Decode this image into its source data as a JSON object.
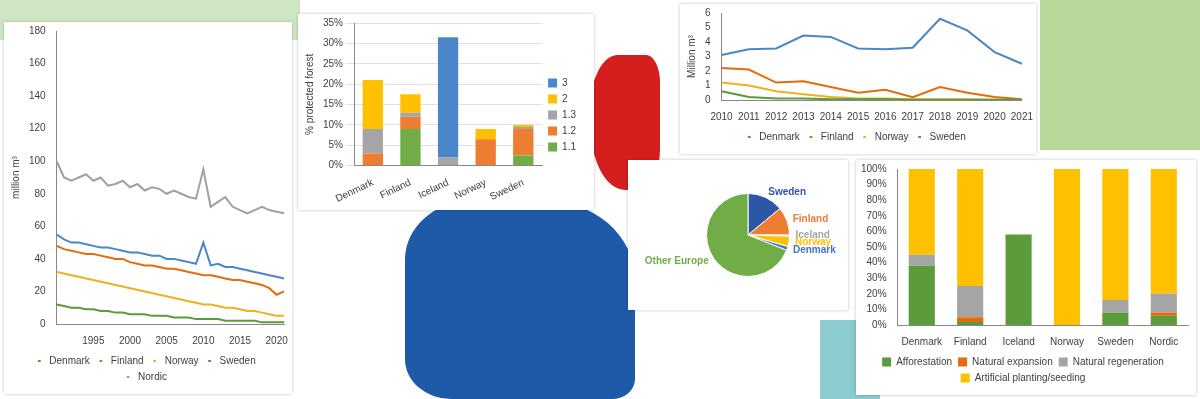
{
  "chart_data": [
    {
      "type": "line",
      "ylabel": "million m³",
      "categories": [
        null,
        null,
        null,
        null,
        null,
        "1995",
        null,
        null,
        null,
        null,
        "2000",
        null,
        null,
        null,
        null,
        "2005",
        null,
        null,
        null,
        null,
        "2010",
        null,
        null,
        null,
        null,
        "2015",
        null,
        null,
        null,
        null,
        "2020",
        null
      ],
      "series": [
        {
          "name": "Denmark",
          "color": "#5b9b3a",
          "values": [
            12,
            11,
            10,
            10,
            9,
            9,
            8,
            8,
            7,
            7,
            6,
            6,
            6,
            5,
            5,
            5,
            4,
            4,
            4,
            3,
            3,
            3,
            3,
            2,
            2,
            2,
            2,
            2,
            1,
            1,
            1,
            1
          ]
        },
        {
          "name": "Finland",
          "color": "#e46c0a",
          "values": [
            48,
            46,
            45,
            44,
            43,
            43,
            42,
            41,
            40,
            40,
            38,
            37,
            36,
            36,
            35,
            34,
            34,
            33,
            32,
            31,
            30,
            30,
            29,
            28,
            27,
            27,
            26,
            25,
            24,
            22,
            18,
            20
          ]
        },
        {
          "name": "Norway",
          "color": "#f0b020",
          "values": [
            32,
            31,
            30,
            29,
            28,
            27,
            26,
            25,
            24,
            23,
            22,
            21,
            20,
            19,
            18,
            17,
            16,
            15,
            14,
            13,
            12,
            12,
            11,
            10,
            10,
            9,
            8,
            8,
            7,
            6,
            5,
            5
          ]
        },
        {
          "name": "Sweden",
          "color": "#4a86c8",
          "values": [
            55,
            52,
            50,
            50,
            49,
            48,
            47,
            47,
            46,
            45,
            44,
            44,
            43,
            42,
            42,
            40,
            40,
            39,
            38,
            37,
            50,
            36,
            37,
            35,
            35,
            34,
            33,
            32,
            31,
            30,
            29,
            28
          ]
        },
        {
          "name": "Nordic",
          "color": "#a0a0a0",
          "values": [
            100,
            90,
            88,
            90,
            92,
            88,
            90,
            85,
            86,
            88,
            84,
            86,
            82,
            84,
            83,
            80,
            82,
            80,
            78,
            77,
            95,
            72,
            75,
            78,
            72,
            70,
            68,
            70,
            72,
            70,
            69,
            68
          ]
        }
      ],
      "ylim": [
        0,
        180
      ],
      "yticks": [
        0,
        20,
        40,
        60,
        80,
        100,
        120,
        140,
        160,
        180
      ],
      "grid": false,
      "legend": "bottom"
    },
    {
      "type": "bar",
      "stacked": true,
      "ylabel": "% protected forest",
      "categories": [
        "Denmark",
        "Finland",
        "Iceland",
        "Norway",
        "Sweden"
      ],
      "series": [
        {
          "name": "1.1",
          "color": "#70ad47",
          "values": [
            0,
            9,
            0,
            0,
            2.5
          ]
        },
        {
          "name": "1.2",
          "color": "#ed7d31",
          "values": [
            3,
            3,
            0,
            6.5,
            6.5
          ]
        },
        {
          "name": "1.3",
          "color": "#a5a5a5",
          "values": [
            6,
            1,
            2,
            0,
            0.5
          ]
        },
        {
          "name": "2",
          "color": "#ffc000",
          "values": [
            12,
            4.5,
            0,
            2.5,
            0.5
          ]
        },
        {
          "name": "3",
          "color": "#4a86c8",
          "values": [
            0,
            0,
            29.5,
            0,
            0
          ]
        }
      ],
      "ylim": [
        0,
        35
      ],
      "yticks": [
        {
          "value": 0,
          "label": "0%"
        },
        {
          "value": 5,
          "label": "5%"
        },
        {
          "value": 10,
          "label": "10%"
        },
        {
          "value": 15,
          "label": "15%"
        },
        {
          "value": 20,
          "label": "20%"
        },
        {
          "value": 25,
          "label": "25%"
        },
        {
          "value": 30,
          "label": "30%"
        },
        {
          "value": 35,
          "label": "35%"
        }
      ],
      "grid": true,
      "legend": "right"
    },
    {
      "type": "pie",
      "categories": [
        "Sweden",
        "Finland",
        "Iceland",
        "Norway",
        "Denmark",
        "Other Europe"
      ],
      "values": [
        14,
        11,
        0.5,
        4,
        1.5,
        69
      ],
      "colors": [
        "#2e56a6",
        "#ed7d31",
        "#a5a5a5",
        "#ffc000",
        "#4472c4",
        "#70ad47"
      ]
    },
    {
      "type": "line",
      "ylabel": "Million m³",
      "categories": [
        "2010",
        "2011",
        "2012",
        "2013",
        "2014",
        "2015",
        "2016",
        "2017",
        "2018",
        "2019",
        "2020",
        "2021"
      ],
      "series": [
        {
          "name": "Denmark",
          "color": "#5b9b3a",
          "values": [
            0.6,
            0.2,
            0.1,
            0.1,
            0.05,
            0.05,
            0.05,
            0.02,
            0.02,
            0.02,
            0.01,
            0.01
          ]
        },
        {
          "name": "Finland",
          "color": "#e46c0a",
          "values": [
            2.2,
            2.1,
            1.2,
            1.3,
            0.9,
            0.5,
            0.7,
            0.2,
            0.9,
            0.5,
            0.2,
            0.05
          ]
        },
        {
          "name": "Norway",
          "color": "#f0b020",
          "values": [
            1.2,
            1.0,
            0.6,
            0.4,
            0.2,
            0.1,
            0.1,
            0.05,
            0.05,
            0.05,
            0.02,
            0.02
          ]
        },
        {
          "name": "Sweden",
          "color": "#4a86c8",
          "values": [
            3.1,
            3.5,
            3.55,
            4.45,
            4.35,
            3.55,
            3.5,
            3.6,
            5.6,
            4.8,
            3.3,
            2.5
          ]
        }
      ],
      "ylim": [
        0,
        6
      ],
      "yticks": [
        0,
        1,
        2,
        3,
        4,
        5,
        6
      ],
      "grid": false,
      "legend": "bottom"
    },
    {
      "type": "bar",
      "stacked": true,
      "categories": [
        "Denmark",
        "Finland",
        "Iceland",
        "Norway",
        "Sweden",
        "Nordic"
      ],
      "series": [
        {
          "name": "Afforestation",
          "color": "#5b9b3a",
          "values": [
            38,
            2,
            58,
            0,
            8,
            6
          ]
        },
        {
          "name": "Natural expansion",
          "color": "#e46c0a",
          "values": [
            0,
            3,
            0,
            0,
            0,
            2
          ]
        },
        {
          "name": "Natural regeneration",
          "color": "#a5a5a5",
          "values": [
            7,
            20,
            0,
            0,
            8,
            12
          ]
        },
        {
          "name": "Artificial planting/seeding",
          "color": "#ffc000",
          "values": [
            55,
            75,
            0,
            100,
            84,
            80
          ]
        }
      ],
      "ylim": [
        0,
        100
      ],
      "yticks": [
        {
          "value": 0,
          "label": "0%"
        },
        {
          "value": 10,
          "label": "10%"
        },
        {
          "value": 20,
          "label": "20%"
        },
        {
          "value": 30,
          "label": "30%"
        },
        {
          "value": 40,
          "label": "40%"
        },
        {
          "value": 50,
          "label": "50%"
        },
        {
          "value": 60,
          "label": "60%"
        },
        {
          "value": 70,
          "label": "70%"
        },
        {
          "value": 80,
          "label": "80%"
        },
        {
          "value": 90,
          "label": "90%"
        },
        {
          "value": 100,
          "label": "100%"
        }
      ],
      "grid": false,
      "legend": "bottom"
    }
  ]
}
